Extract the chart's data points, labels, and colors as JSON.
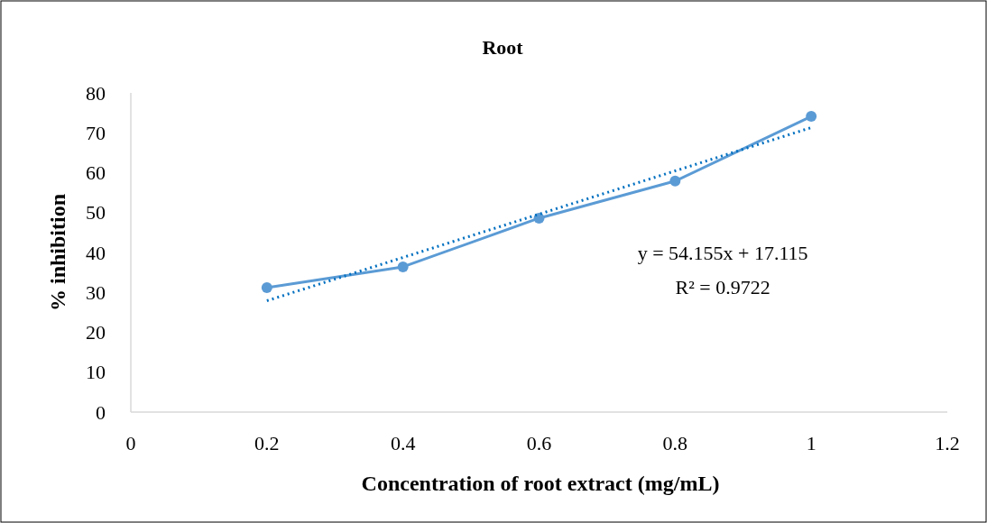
{
  "chart_data": {
    "type": "line",
    "title": "Root",
    "xlabel": "Concentration of root extract (mg/mL)",
    "ylabel": "% inhibition",
    "x": [
      0.2,
      0.4,
      0.6,
      0.8,
      1
    ],
    "series": [
      {
        "color": "#5b9bd5",
        "values": [
          31.2,
          36.4,
          48.6,
          57.9,
          74.1
        ],
        "marker": "circle",
        "line_style": "solid"
      },
      {
        "type": "line",
        "color": "#0070c0",
        "x": [
          0.2,
          1
        ],
        "values": [
          27.9,
          71.3
        ],
        "marker": "none",
        "line_style": "dotted"
      }
    ],
    "xlim": [
      0,
      1.2
    ],
    "xticks": [
      0,
      0.2,
      0.4,
      0.6,
      0.8,
      1,
      1.2
    ],
    "ylim": [
      0,
      80
    ],
    "yticks": [
      0,
      10,
      20,
      30,
      40,
      50,
      60,
      70,
      80
    ],
    "annotations": [
      "y = 54.155x + 17.115",
      "R² = 0.9722"
    ],
    "grid": false
  }
}
